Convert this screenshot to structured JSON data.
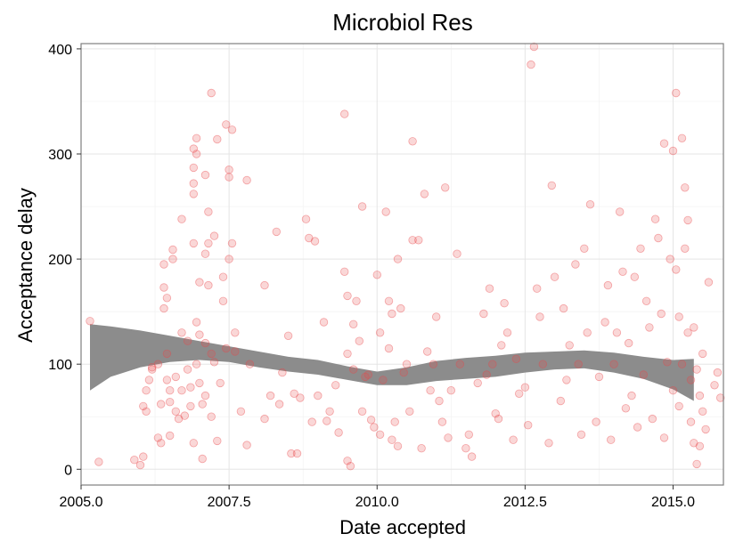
{
  "chart_data": {
    "type": "scatter",
    "title": "Microbiol Res",
    "xlabel": "Date accepted",
    "ylabel": "Acceptance delay",
    "xlim": [
      2005.0,
      2015.85
    ],
    "ylim": [
      -15,
      405
    ],
    "x_ticks": [
      2005.0,
      2007.5,
      2010.0,
      2012.5,
      2015.0
    ],
    "x_tick_labels": [
      "2005.0",
      "2007.5",
      "2010.0",
      "2012.5",
      "2015.0"
    ],
    "y_ticks": [
      0,
      100,
      200,
      300,
      400
    ],
    "y_tick_labels": [
      "0",
      "100",
      "200",
      "300",
      "400"
    ],
    "grid": true,
    "point_color": "#e8474b",
    "band_color": "#8c8c8c",
    "points": [
      [
        2005.15,
        141
      ],
      [
        2005.3,
        7
      ],
      [
        2005.9,
        9
      ],
      [
        2006.0,
        4
      ],
      [
        2006.05,
        12
      ],
      [
        2006.05,
        60
      ],
      [
        2006.1,
        75
      ],
      [
        2006.1,
        55
      ],
      [
        2006.15,
        85
      ],
      [
        2006.2,
        97
      ],
      [
        2006.2,
        95
      ],
      [
        2006.3,
        100
      ],
      [
        2006.3,
        30
      ],
      [
        2006.35,
        25
      ],
      [
        2006.35,
        62
      ],
      [
        2006.4,
        153
      ],
      [
        2006.4,
        173
      ],
      [
        2006.4,
        195
      ],
      [
        2006.45,
        163
      ],
      [
        2006.45,
        110
      ],
      [
        2006.45,
        85
      ],
      [
        2006.5,
        32
      ],
      [
        2006.5,
        64
      ],
      [
        2006.5,
        75
      ],
      [
        2006.55,
        209
      ],
      [
        2006.55,
        200
      ],
      [
        2006.6,
        88
      ],
      [
        2006.6,
        55
      ],
      [
        2006.65,
        48
      ],
      [
        2006.7,
        238
      ],
      [
        2006.7,
        130
      ],
      [
        2006.7,
        75
      ],
      [
        2006.75,
        51
      ],
      [
        2006.8,
        122
      ],
      [
        2006.8,
        95
      ],
      [
        2006.85,
        60
      ],
      [
        2006.85,
        78
      ],
      [
        2006.9,
        305
      ],
      [
        2006.9,
        287
      ],
      [
        2006.9,
        272
      ],
      [
        2006.9,
        262
      ],
      [
        2006.9,
        215
      ],
      [
        2006.9,
        25
      ],
      [
        2006.95,
        315
      ],
      [
        2006.95,
        300
      ],
      [
        2006.95,
        140
      ],
      [
        2006.95,
        100
      ],
      [
        2007.0,
        178
      ],
      [
        2007.0,
        128
      ],
      [
        2007.0,
        82
      ],
      [
        2007.05,
        10
      ],
      [
        2007.05,
        62
      ],
      [
        2007.1,
        280
      ],
      [
        2007.1,
        205
      ],
      [
        2007.1,
        120
      ],
      [
        2007.1,
        70
      ],
      [
        2007.15,
        245
      ],
      [
        2007.15,
        215
      ],
      [
        2007.15,
        175
      ],
      [
        2007.2,
        358
      ],
      [
        2007.2,
        110
      ],
      [
        2007.2,
        50
      ],
      [
        2007.25,
        222
      ],
      [
        2007.25,
        102
      ],
      [
        2007.3,
        314
      ],
      [
        2007.3,
        27
      ],
      [
        2007.35,
        82
      ],
      [
        2007.4,
        183
      ],
      [
        2007.4,
        160
      ],
      [
        2007.45,
        328
      ],
      [
        2007.45,
        115
      ],
      [
        2007.5,
        285
      ],
      [
        2007.5,
        278
      ],
      [
        2007.5,
        200
      ],
      [
        2007.55,
        323
      ],
      [
        2007.55,
        215
      ],
      [
        2007.6,
        130
      ],
      [
        2007.6,
        112
      ],
      [
        2007.7,
        55
      ],
      [
        2007.8,
        275
      ],
      [
        2007.8,
        23
      ],
      [
        2007.85,
        100
      ],
      [
        2008.1,
        175
      ],
      [
        2008.1,
        48
      ],
      [
        2008.2,
        70
      ],
      [
        2008.3,
        226
      ],
      [
        2008.35,
        62
      ],
      [
        2008.4,
        92
      ],
      [
        2008.5,
        127
      ],
      [
        2008.55,
        15
      ],
      [
        2008.6,
        72
      ],
      [
        2008.65,
        15
      ],
      [
        2008.7,
        68
      ],
      [
        2008.8,
        238
      ],
      [
        2008.85,
        220
      ],
      [
        2008.9,
        45
      ],
      [
        2008.95,
        217
      ],
      [
        2009.0,
        70
      ],
      [
        2009.1,
        140
      ],
      [
        2009.15,
        46
      ],
      [
        2009.2,
        55
      ],
      [
        2009.3,
        80
      ],
      [
        2009.35,
        35
      ],
      [
        2009.45,
        338
      ],
      [
        2009.45,
        188
      ],
      [
        2009.5,
        165
      ],
      [
        2009.5,
        110
      ],
      [
        2009.5,
        8
      ],
      [
        2009.55,
        3
      ],
      [
        2009.6,
        138
      ],
      [
        2009.6,
        95
      ],
      [
        2009.65,
        160
      ],
      [
        2009.7,
        122
      ],
      [
        2009.75,
        55
      ],
      [
        2009.75,
        250
      ],
      [
        2009.8,
        88
      ],
      [
        2009.85,
        90
      ],
      [
        2009.9,
        47
      ],
      [
        2009.95,
        40
      ],
      [
        2010.0,
        185
      ],
      [
        2010.05,
        130
      ],
      [
        2010.05,
        33
      ],
      [
        2010.1,
        85
      ],
      [
        2010.15,
        245
      ],
      [
        2010.2,
        160
      ],
      [
        2010.2,
        115
      ],
      [
        2010.25,
        148
      ],
      [
        2010.25,
        28
      ],
      [
        2010.3,
        45
      ],
      [
        2010.35,
        22
      ],
      [
        2010.35,
        200
      ],
      [
        2010.4,
        153
      ],
      [
        2010.45,
        92
      ],
      [
        2010.5,
        100
      ],
      [
        2010.55,
        55
      ],
      [
        2010.6,
        312
      ],
      [
        2010.6,
        218
      ],
      [
        2010.7,
        218
      ],
      [
        2010.75,
        20
      ],
      [
        2010.8,
        262
      ],
      [
        2010.85,
        112
      ],
      [
        2010.9,
        75
      ],
      [
        2010.95,
        100
      ],
      [
        2011.0,
        145
      ],
      [
        2011.05,
        65
      ],
      [
        2011.1,
        45
      ],
      [
        2011.15,
        268
      ],
      [
        2011.2,
        30
      ],
      [
        2011.25,
        75
      ],
      [
        2011.35,
        205
      ],
      [
        2011.4,
        100
      ],
      [
        2011.5,
        20
      ],
      [
        2011.55,
        33
      ],
      [
        2011.6,
        12
      ],
      [
        2011.7,
        82
      ],
      [
        2011.8,
        148
      ],
      [
        2011.85,
        90
      ],
      [
        2011.9,
        172
      ],
      [
        2011.95,
        100
      ],
      [
        2012.0,
        53
      ],
      [
        2012.05,
        48
      ],
      [
        2012.1,
        118
      ],
      [
        2012.15,
        158
      ],
      [
        2012.2,
        130
      ],
      [
        2012.3,
        28
      ],
      [
        2012.35,
        105
      ],
      [
        2012.4,
        72
      ],
      [
        2012.5,
        78
      ],
      [
        2012.55,
        42
      ],
      [
        2012.6,
        385
      ],
      [
        2012.65,
        402
      ],
      [
        2012.7,
        172
      ],
      [
        2012.75,
        145
      ],
      [
        2012.8,
        100
      ],
      [
        2012.9,
        25
      ],
      [
        2012.95,
        270
      ],
      [
        2013.0,
        183
      ],
      [
        2013.1,
        65
      ],
      [
        2013.15,
        153
      ],
      [
        2013.2,
        85
      ],
      [
        2013.25,
        118
      ],
      [
        2013.35,
        195
      ],
      [
        2013.4,
        100
      ],
      [
        2013.45,
        33
      ],
      [
        2013.5,
        210
      ],
      [
        2013.55,
        130
      ],
      [
        2013.6,
        252
      ],
      [
        2013.7,
        45
      ],
      [
        2013.75,
        88
      ],
      [
        2013.85,
        140
      ],
      [
        2013.9,
        175
      ],
      [
        2013.95,
        28
      ],
      [
        2014.0,
        100
      ],
      [
        2014.05,
        130
      ],
      [
        2014.1,
        245
      ],
      [
        2014.15,
        188
      ],
      [
        2014.2,
        58
      ],
      [
        2014.25,
        120
      ],
      [
        2014.3,
        70
      ],
      [
        2014.35,
        183
      ],
      [
        2014.4,
        40
      ],
      [
        2014.45,
        210
      ],
      [
        2014.5,
        90
      ],
      [
        2014.55,
        160
      ],
      [
        2014.6,
        135
      ],
      [
        2014.65,
        48
      ],
      [
        2014.7,
        238
      ],
      [
        2014.75,
        220
      ],
      [
        2014.8,
        148
      ],
      [
        2014.85,
        310
      ],
      [
        2014.85,
        30
      ],
      [
        2014.9,
        102
      ],
      [
        2014.95,
        200
      ],
      [
        2015.0,
        303
      ],
      [
        2015.0,
        75
      ],
      [
        2015.05,
        358
      ],
      [
        2015.05,
        190
      ],
      [
        2015.1,
        145
      ],
      [
        2015.1,
        60
      ],
      [
        2015.15,
        315
      ],
      [
        2015.15,
        100
      ],
      [
        2015.2,
        268
      ],
      [
        2015.2,
        210
      ],
      [
        2015.25,
        237
      ],
      [
        2015.25,
        130
      ],
      [
        2015.3,
        85
      ],
      [
        2015.3,
        45
      ],
      [
        2015.35,
        135
      ],
      [
        2015.35,
        25
      ],
      [
        2015.4,
        95
      ],
      [
        2015.4,
        5
      ],
      [
        2015.45,
        70
      ],
      [
        2015.45,
        22
      ],
      [
        2015.5,
        55
      ],
      [
        2015.5,
        110
      ],
      [
        2015.55,
        38
      ],
      [
        2015.6,
        178
      ],
      [
        2015.7,
        80
      ],
      [
        2015.75,
        92
      ],
      [
        2015.8,
        68
      ]
    ],
    "smooth_band": {
      "x": [
        2005.15,
        2005.5,
        2006.0,
        2006.5,
        2007.0,
        2007.5,
        2008.0,
        2008.5,
        2009.0,
        2009.5,
        2010.0,
        2010.5,
        2011.0,
        2011.5,
        2012.0,
        2012.5,
        2013.0,
        2013.5,
        2014.0,
        2014.5,
        2015.0,
        2015.35
      ],
      "lower": [
        75,
        88,
        97,
        102,
        104,
        102,
        97,
        93,
        90,
        85,
        80,
        80,
        84,
        86,
        88,
        92,
        95,
        96,
        92,
        86,
        76,
        65
      ],
      "upper": [
        138,
        136,
        132,
        127,
        122,
        117,
        112,
        107,
        104,
        98,
        93,
        97,
        103,
        106,
        108,
        111,
        112,
        113,
        111,
        107,
        104,
        105
      ]
    }
  }
}
